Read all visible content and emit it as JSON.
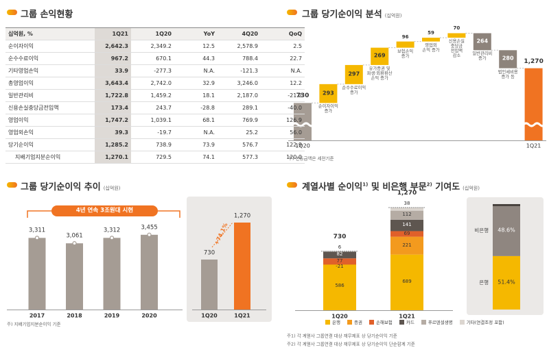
{
  "table": {
    "title": "그룹 손익현황",
    "columns": [
      "십억원, %",
      "1Q21",
      "1Q20",
      "YoY",
      "4Q20",
      "QoQ"
    ],
    "rows": [
      [
        "순이자이익",
        "2,642.3",
        "2,349.2",
        "12.5",
        "2,578.9",
        "2.5"
      ],
      [
        "순수수료이익",
        "967.2",
        "670.1",
        "44.3",
        "788.4",
        "22.7"
      ],
      [
        "기타영업손익",
        "33.9",
        "-277.3",
        "N.A.",
        "-121.3",
        "N.A."
      ],
      [
        "총영업이익",
        "3,643.4",
        "2,742.0",
        "32.9",
        "3,246.0",
        "12.2"
      ],
      [
        "일반관리비",
        "1,722.8",
        "1,459.2",
        "18.1",
        "2,187.0",
        "-21.2"
      ],
      [
        "신용손실충당금전입액",
        "173.4",
        "243.7",
        "-28.8",
        "289.1",
        "-40.0"
      ],
      [
        "영업이익",
        "1,747.2",
        "1,039.1",
        "68.1",
        "769.9",
        "126.9"
      ],
      [
        "영업외손익",
        "39.3",
        "-19.7",
        "N.A.",
        "25.2",
        "56.0"
      ],
      [
        "당기순이익",
        "1,285.2",
        "738.9",
        "73.9",
        "576.7",
        "122.9"
      ],
      [
        "지배기업지분순이익",
        "1,270.1",
        "729.5",
        "74.1",
        "577.3",
        "120.0"
      ]
    ]
  },
  "chart_data": [
    {
      "type": "waterfall",
      "title": "그룹 당기순이익 분석",
      "unit": "(십억원)",
      "categories": [
        "1Q20",
        "순이자이익\n증가",
        "순수수료이익\n증가",
        "유가증권 및\n파생·외환환산\n손익 증가",
        "보험손익\n증가",
        "영업외\n손익 증가",
        "신용손실\n충당금\n전입액\n감소",
        "일반관리비\n증가",
        "법인세비용\n증가 등",
        "1Q21"
      ],
      "values": [
        730,
        293,
        297,
        269,
        96,
        59,
        70,
        -264,
        -280,
        1270
      ],
      "value_labels": [
        "730",
        "293",
        "297",
        "269",
        "96",
        "59",
        "70",
        "264",
        "280",
        "1,270"
      ],
      "colors": {
        "start": "#a59c94",
        "increase": "#f5b800",
        "decrease": "#8d837b",
        "end": "#f07322"
      },
      "note": "주) 변동금액은 세전기준"
    },
    {
      "type": "bar",
      "title": "그룹 당기순이익 추이",
      "unit": "(십억원)",
      "categories": [
        "2017",
        "2018",
        "2019",
        "2020"
      ],
      "values": [
        3311,
        3061,
        3312,
        3455
      ],
      "value_labels": [
        "3,311",
        "3,061",
        "3,312",
        "3,455"
      ],
      "color": "#a59c94",
      "annotation": "4년 연속 3조원대 시현",
      "note": "주) 지배기업지분순이익 기준"
    },
    {
      "type": "bar",
      "categories": [
        "1Q20",
        "1Q21"
      ],
      "values": [
        730,
        1270
      ],
      "value_labels": [
        "730",
        "1,270"
      ],
      "colors": [
        "#a59c94",
        "#f07322"
      ],
      "annotation": "+74.1%"
    },
    {
      "type": "stacked_bar",
      "title_parts": [
        "계열사별 순이익",
        "1)",
        " 및 비은행 부문",
        "2)",
        " 기여도"
      ],
      "unit": "(십억원)",
      "categories": [
        "1Q20",
        "1Q21"
      ],
      "series": [
        {
          "name": "은행",
          "color": "#f5b800",
          "values": [
            586,
            689
          ]
        },
        {
          "name": "증권",
          "color": "#f39a1e",
          "values": [
            -21,
            221
          ]
        },
        {
          "name": "손해보험",
          "color": "#e0602a",
          "values": [
            77,
            69
          ]
        },
        {
          "name": "카드",
          "color": "#5e5650",
          "values": [
            82,
            141
          ]
        },
        {
          "name": "푸르덴셜생명",
          "color": "#b5aca4",
          "values": [
            null,
            112
          ]
        },
        {
          "name": "기타(연결조정 포함)",
          "color": "#dcd6d0",
          "values": [
            6,
            38
          ]
        }
      ],
      "totals": [
        730,
        1270
      ],
      "total_labels": [
        "730",
        "1,270"
      ],
      "notes": [
        "주1) 각 계열사 그룹연결 대상 재무제표 상 당기순이익 기준",
        "주2) 각 계열사 그룹연결 대상 재무제표 상 당기순이익 단순합계 기준"
      ]
    },
    {
      "type": "stacked_bar",
      "categories": [
        "1Q21"
      ],
      "series": [
        {
          "name": "은행",
          "color": "#f5b800",
          "values": [
            51.4
          ],
          "value_labels": [
            "51.4%"
          ]
        },
        {
          "name": "비은행",
          "color": "#8f8680",
          "values": [
            48.6
          ],
          "value_labels": [
            "48.6%"
          ]
        }
      ]
    }
  ]
}
